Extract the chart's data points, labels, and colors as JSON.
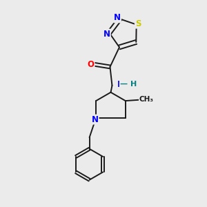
{
  "bg_color": "#ebebeb",
  "bond_color": "#1a1a1a",
  "atom_colors": {
    "N": "#0000ff",
    "O": "#ff0000",
    "S": "#cccc00",
    "C": "#1a1a1a",
    "NH": "#008080"
  },
  "lw": 1.4,
  "fs": 8.5,
  "xlim": [
    0,
    10
  ],
  "ylim": [
    0,
    10
  ]
}
